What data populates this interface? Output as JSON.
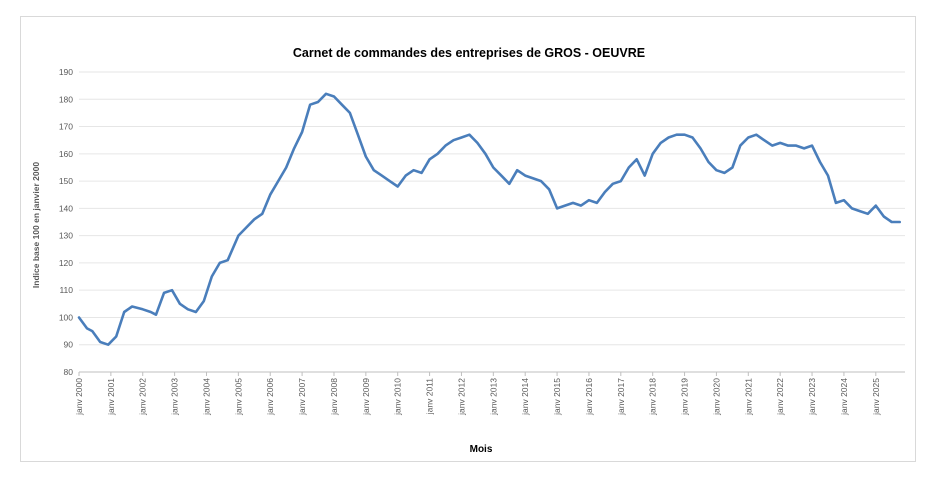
{
  "chart_data": {
    "type": "line",
    "title": "Carnet de commandes des entreprises de GROS - OEUVRE",
    "xlabel": "Mois",
    "ylabel": "Indice base 100 en janvier 2000",
    "ylim": [
      80,
      190
    ],
    "yticks": [
      "80",
      "90",
      "100",
      "110",
      "120",
      "130",
      "140",
      "150",
      "160",
      "170",
      "180",
      "190"
    ],
    "xtick_labels": [
      "janv 2000",
      "janv 2001",
      "janv 2002",
      "janv 2003",
      "janv 2004",
      "janv 2005",
      "janv 2006",
      "janv 2007",
      "janv 2008",
      "janv 2009",
      "janv 2010",
      "janv 2011",
      "janv 2012",
      "janv 2013",
      "janv 2014",
      "janv 2015",
      "janv 2016",
      "janv 2017",
      "janv 2018",
      "janv 2019",
      "janv 2020",
      "janv 2021",
      "janv 2022",
      "janv 2023",
      "janv 2024",
      "janv 2025"
    ],
    "grid": true,
    "series_color": "#4a7ebb",
    "series": [
      {
        "x": [
          "2000-01",
          "2000-04",
          "2000-06",
          "2000-09",
          "2000-12",
          "2001-03",
          "2001-06",
          "2001-09",
          "2002-01",
          "2002-04",
          "2002-06",
          "2002-09",
          "2002-12",
          "2003-03",
          "2003-06",
          "2003-09",
          "2003-12",
          "2004-03",
          "2004-06",
          "2004-09",
          "2005-01",
          "2005-04",
          "2005-07",
          "2005-10",
          "2006-01",
          "2006-04",
          "2006-07",
          "2006-10",
          "2007-01",
          "2007-04",
          "2007-07",
          "2007-10",
          "2008-01",
          "2008-04",
          "2008-07",
          "2008-10",
          "2009-01",
          "2009-04",
          "2009-07",
          "2009-10",
          "2010-01",
          "2010-04",
          "2010-07",
          "2010-10",
          "2011-01",
          "2011-04",
          "2011-07",
          "2011-10",
          "2012-01",
          "2012-04",
          "2012-07",
          "2012-10",
          "2013-01",
          "2013-04",
          "2013-07",
          "2013-10",
          "2014-01",
          "2014-04",
          "2014-07",
          "2014-10",
          "2015-01",
          "2015-04",
          "2015-07",
          "2015-10",
          "2016-01",
          "2016-04",
          "2016-07",
          "2016-10",
          "2017-01",
          "2017-04",
          "2017-07",
          "2017-10",
          "2018-01",
          "2018-04",
          "2018-07",
          "2018-10",
          "2019-01",
          "2019-04",
          "2019-07",
          "2019-10",
          "2020-01",
          "2020-04",
          "2020-07",
          "2020-10",
          "2021-01",
          "2021-04",
          "2021-07",
          "2021-10",
          "2022-01",
          "2022-04",
          "2022-07",
          "2022-10",
          "2023-01",
          "2023-04",
          "2023-07",
          "2023-10",
          "2024-01",
          "2024-04",
          "2024-07",
          "2024-10",
          "2025-01",
          "2025-04",
          "2025-07",
          "2025-10"
        ],
        "values": [
          100,
          96,
          95,
          91,
          90,
          93,
          102,
          104,
          103,
          102,
          101,
          109,
          110,
          105,
          103,
          102,
          106,
          115,
          120,
          121,
          130,
          133,
          136,
          138,
          145,
          150,
          155,
          162,
          168,
          178,
          179,
          182,
          181,
          178,
          175,
          167,
          159,
          154,
          152,
          150,
          148,
          152,
          154,
          153,
          158,
          160,
          163,
          165,
          166,
          167,
          164,
          160,
          155,
          152,
          149,
          154,
          152,
          151,
          150,
          147,
          140,
          141,
          142,
          141,
          143,
          142,
          146,
          149,
          150,
          155,
          158,
          152,
          160,
          164,
          166,
          167,
          167,
          166,
          162,
          157,
          154,
          153,
          155,
          163,
          166,
          167,
          165,
          163,
          164,
          163,
          163,
          162,
          163,
          157,
          152,
          142,
          143,
          140,
          139,
          138,
          141,
          137,
          135,
          135
        ]
      }
    ]
  }
}
